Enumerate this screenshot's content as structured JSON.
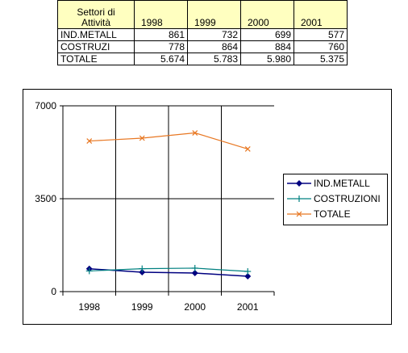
{
  "table": {
    "header": [
      "Settori di Attività",
      "1998",
      "1999",
      "2000",
      "2001"
    ],
    "rows": [
      [
        "IND.METALL",
        "861",
        "732",
        "699",
        "577"
      ],
      [
        "COSTRUZI",
        "778",
        "864",
        "884",
        "760"
      ],
      [
        "TOTALE",
        "5.674",
        "5.783",
        "5.980",
        "5.375"
      ]
    ]
  },
  "chart_data": {
    "type": "line",
    "categories": [
      "1998",
      "1999",
      "2000",
      "2001"
    ],
    "ylim": [
      0,
      7000
    ],
    "yticks": [
      "0",
      "3500",
      "7000"
    ],
    "grid": true,
    "legend_position": "right",
    "series": [
      {
        "name": "IND.METALL",
        "values": [
          861,
          732,
          699,
          577
        ],
        "color": "#000080",
        "marker": "diamond"
      },
      {
        "name": "COSTRUZIONI",
        "values": [
          778,
          864,
          884,
          760
        ],
        "color": "#008080",
        "marker": "plus"
      },
      {
        "name": "TOTALE",
        "values": [
          5674,
          5783,
          5980,
          5375
        ],
        "color": "#e87722",
        "marker": "x"
      }
    ]
  }
}
